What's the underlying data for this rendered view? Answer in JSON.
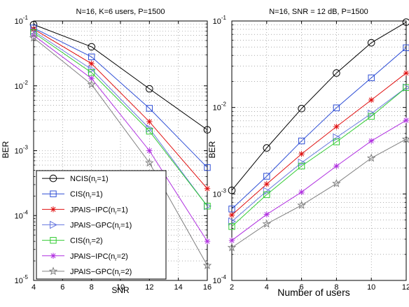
{
  "chart_data": [
    {
      "type": "line",
      "title": "N=16, K=6 users, P=1500",
      "xlabel": "SNR",
      "ylabel": "BER",
      "xlim": [
        4,
        16
      ],
      "ylim": [
        1e-05,
        0.1
      ],
      "yscale": "log",
      "grid": true,
      "legend_position": "bottom-left",
      "x": [
        4,
        8,
        12,
        16
      ],
      "xticks": [
        "4",
        "6",
        "8",
        "10",
        "12",
        "14",
        "16"
      ],
      "series": [
        {
          "name": "NCIS(n_r=1)",
          "label_main": "NCIS(n",
          "label_sub": "r",
          "label_tail": "=1)",
          "color": "#000000",
          "marker": "circle",
          "values": [
            0.088,
            0.04,
            0.009,
            0.0021
          ]
        },
        {
          "name": "CIS(n_r=1)",
          "label_main": "CIS(n",
          "label_sub": "r",
          "label_tail": "=1)",
          "color": "#2f4fd6",
          "marker": "square",
          "values": [
            0.078,
            0.028,
            0.0045,
            0.00055
          ]
        },
        {
          "name": "JPAIS-IPC(n_r=1)",
          "label_main": "JPAIS−IPC(n",
          "label_sub": "r",
          "label_tail": "=1)",
          "color": "#e01010",
          "marker": "asterisk",
          "values": [
            0.075,
            0.022,
            0.0028,
            0.00026
          ]
        },
        {
          "name": "JPAIS-GPC(n_r=1)",
          "label_main": "JPAIS−GPC(n",
          "label_sub": "r",
          "label_tail": "=1)",
          "color": "#6a7ae0",
          "marker": "triangle-right",
          "values": [
            0.07,
            0.018,
            0.0022,
            0.00014
          ]
        },
        {
          "name": "CIS(n_r=2)",
          "label_main": "CIS(n",
          "label_sub": "r",
          "label_tail": "=2)",
          "color": "#33cc33",
          "marker": "square",
          "values": [
            0.066,
            0.016,
            0.002,
            0.00014
          ]
        },
        {
          "name": "JPAIS-IPC(n_r=2)",
          "label_main": "JPAIS−IPC(n",
          "label_sub": "r",
          "label_tail": "=2)",
          "color": "#b030e0",
          "marker": "asterisk",
          "values": [
            0.06,
            0.013,
            0.001,
            4e-05
          ]
        },
        {
          "name": "JPAIS-GPC(n_r=2)",
          "label_main": "JPAIS−GPC(n",
          "label_sub": "r",
          "label_tail": "=2)",
          "color": "#808080",
          "marker": "star",
          "values": [
            0.055,
            0.0105,
            0.00065,
            1.7e-05
          ]
        }
      ]
    },
    {
      "type": "line",
      "title": "N=16, SNR = 12 dB, P=1500",
      "xlabel": "Number of users",
      "ylabel": "BER",
      "xlim": [
        2,
        12
      ],
      "ylim": [
        0.0001,
        0.1
      ],
      "yscale": "log",
      "grid": true,
      "x": [
        2,
        4,
        6,
        8,
        10,
        12
      ],
      "xticks": [
        "2",
        "4",
        "6",
        "8",
        "10",
        "12"
      ],
      "series": [
        {
          "name": "NCIS(n_r=1)",
          "color": "#000000",
          "marker": "circle",
          "values": [
            0.0011,
            0.0034,
            0.0097,
            0.025,
            0.056,
            0.097
          ]
        },
        {
          "name": "CIS(n_r=1)",
          "color": "#2f4fd6",
          "marker": "square",
          "values": [
            0.00067,
            0.0016,
            0.0041,
            0.0099,
            0.022,
            0.049
          ]
        },
        {
          "name": "JPAIS-IPC(n_r=1)",
          "color": "#e01010",
          "marker": "asterisk",
          "values": [
            0.00057,
            0.0013,
            0.0029,
            0.006,
            0.0122,
            0.025
          ]
        },
        {
          "name": "JPAIS-GPC(n_r=1)",
          "color": "#6a7ae0",
          "marker": "triangle-right",
          "values": [
            0.00048,
            0.00108,
            0.0023,
            0.0045,
            0.0085,
            0.017
          ]
        },
        {
          "name": "CIS(n_r=2)",
          "color": "#33cc33",
          "marker": "square",
          "values": [
            0.00042,
            0.00098,
            0.0021,
            0.004,
            0.0079,
            0.017
          ]
        },
        {
          "name": "JPAIS-IPC(n_r=2)",
          "color": "#b030e0",
          "marker": "asterisk",
          "values": [
            0.00029,
            0.00058,
            0.00105,
            0.0021,
            0.0041,
            0.0071
          ]
        },
        {
          "name": "JPAIS-GPC(n_r=2)",
          "color": "#808080",
          "marker": "star",
          "values": [
            0.00024,
            0.00045,
            0.00074,
            0.00132,
            0.0026,
            0.0043
          ]
        }
      ]
    }
  ]
}
